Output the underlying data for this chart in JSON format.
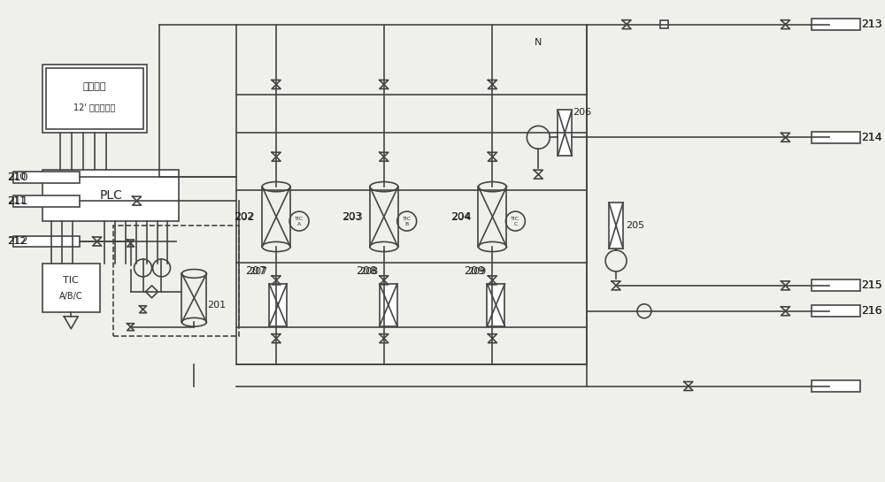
{
  "bg_color": "#f0f0eb",
  "line_color": "#444444",
  "line_width": 1.2,
  "labels": {
    "hmi_line1": "人机界面",
    "hmi_line2": "12' 彩色触摸屏",
    "plc": "PLC",
    "tic_label": "TIC",
    "tic_abc": "A/B/C",
    "n201": "201",
    "n202": "202",
    "n203": "203",
    "n204": "204",
    "n205": "205",
    "n206": "206",
    "n207": "207",
    "n208": "208",
    "n209": "209",
    "n210": "210",
    "n211": "211",
    "n212": "212",
    "n213": "213",
    "n214": "214",
    "n215": "215",
    "n216": "216",
    "n_label": "N"
  }
}
